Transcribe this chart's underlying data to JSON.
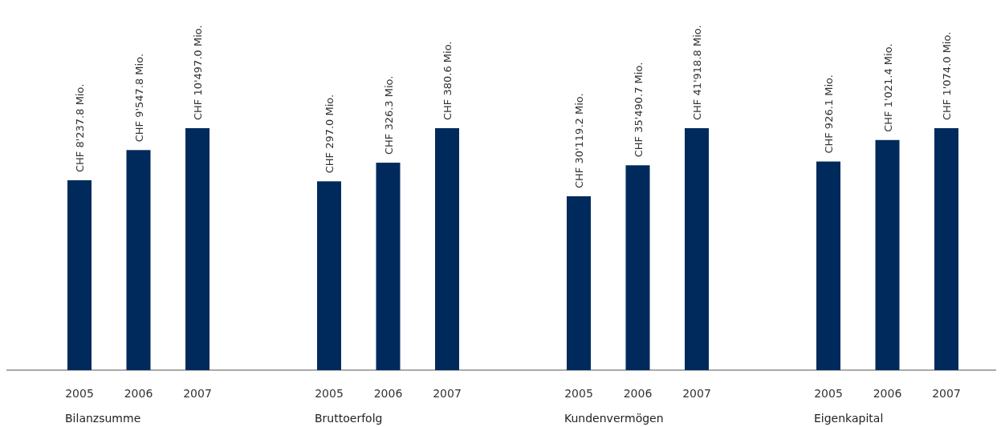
{
  "chart_data": [
    {
      "type": "bar",
      "xlabel": "Bilanzsumme",
      "categories": [
        "2005",
        "2006",
        "2007"
      ],
      "values": [
        8237.8,
        9547.8,
        10497.0
      ],
      "value_labels": [
        "CHF 8'237.8 Mio.",
        "CHF 9'547.8 Mio.",
        "CHF 10'497.0 Mio."
      ],
      "color": "#002a5c"
    },
    {
      "type": "bar",
      "xlabel": "Bruttoerfolg",
      "categories": [
        "2005",
        "2006",
        "2007"
      ],
      "values": [
        297.0,
        326.3,
        380.6
      ],
      "value_labels": [
        "CHF 297.0 Mio.",
        "CHF 326.3 Mio.",
        "CHF 380.6 Mio."
      ],
      "color": "#002a5c"
    },
    {
      "type": "bar",
      "xlabel": "Kundenvermögen",
      "categories": [
        "2005",
        "2006",
        "2007"
      ],
      "values": [
        30119.2,
        35490.7,
        41918.8
      ],
      "value_labels": [
        "CHF 30'119.2 Mio.",
        "CHF 35'490.7 Mio.",
        "CHF 41'918.8 Mio."
      ],
      "color": "#002a5c"
    },
    {
      "type": "bar",
      "xlabel": "Eigenkapital",
      "categories": [
        "2005",
        "2006",
        "2007"
      ],
      "values": [
        926.1,
        1021.4,
        1074.0
      ],
      "value_labels": [
        "CHF 926.1 Mio.",
        "CHF 1'021.4 Mio.",
        "CHF 1'074.0 Mio."
      ],
      "color": "#002a5c"
    }
  ]
}
